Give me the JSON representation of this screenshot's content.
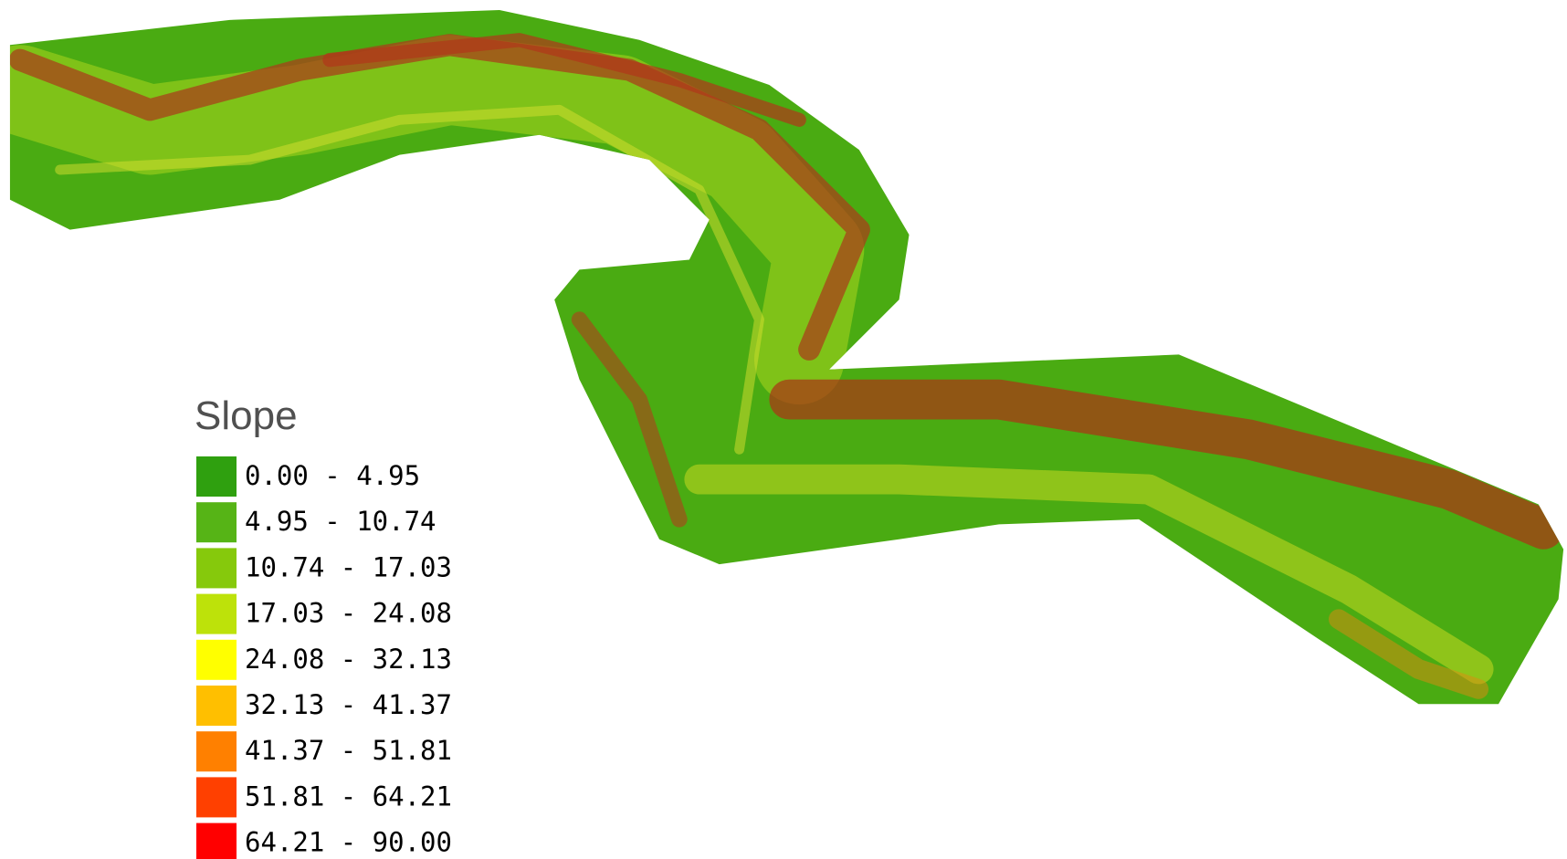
{
  "legend": {
    "title": "Slope",
    "items": [
      {
        "label": "0.00 - 4.95",
        "color": "#2fa00f"
      },
      {
        "label": "4.95 - 10.74",
        "color": "#56b416"
      },
      {
        "label": "10.74 - 17.03",
        "color": "#86c90c"
      },
      {
        "label": "17.03 - 24.08",
        "color": "#bde20a"
      },
      {
        "label": "24.08 - 32.13",
        "color": "#ffff00"
      },
      {
        "label": "32.13 - 41.37",
        "color": "#ffbf00"
      },
      {
        "label": "41.37 - 51.81",
        "color": "#ff8000"
      },
      {
        "label": "51.81 - 64.21",
        "color": "#ff4000"
      },
      {
        "label": "64.21 - 90.00",
        "color": "#ff0000"
      }
    ]
  }
}
